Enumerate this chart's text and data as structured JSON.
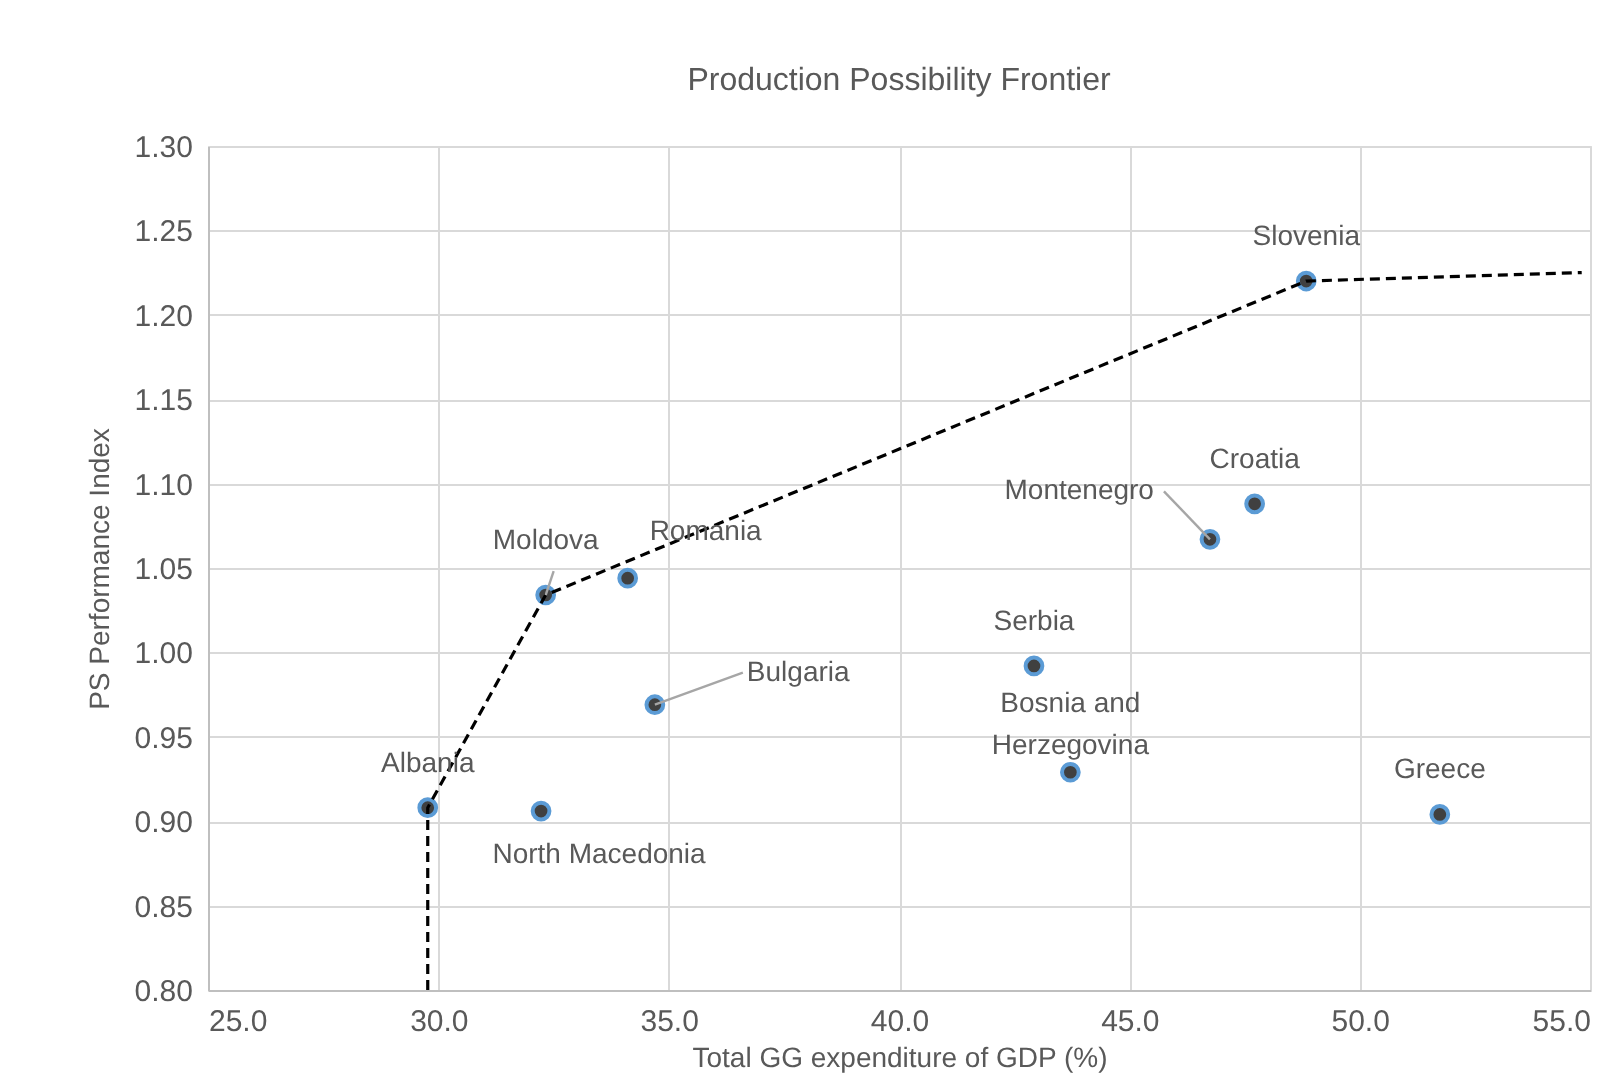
{
  "chart_data": {
    "type": "scatter",
    "title": "Production Possibility Frontier",
    "xlabel": "Total GG expenditure of GDP (%)",
    "ylabel": "PS Performance Index",
    "series": [
      {
        "type": "scatter",
        "color": "#404040",
        "marker": "circle",
        "x": [
          29.77,
          32.33,
          34.11,
          34.7,
          32.23,
          42.93,
          43.72,
          46.75,
          47.72,
          48.84,
          51.74
        ],
        "values": [
          0.908,
          1.034,
          1.044,
          0.969,
          0.906,
          0.992,
          0.929,
          1.067,
          1.088,
          1.22,
          0.904
        ]
      },
      {
        "type": "line",
        "color": "#000000",
        "line_style": "dashed",
        "marker": "none",
        "x": [
          29.77,
          29.77,
          32.33,
          48.84,
          54.82
        ],
        "values": [
          0.8,
          0.908,
          1.034,
          1.22,
          1.225
        ]
      }
    ],
    "annotations": [
      {
        "text": "Albania",
        "x": 29.77,
        "y": 0.908
      },
      {
        "text": "Moldova",
        "x": 32.33,
        "y": 1.034
      },
      {
        "text": "Romania",
        "x": 34.11,
        "y": 1.044
      },
      {
        "text": "Bulgaria",
        "x": 34.7,
        "y": 0.969
      },
      {
        "text": "North Macedonia",
        "x": 32.23,
        "y": 0.906
      },
      {
        "text": "Serbia",
        "x": 42.93,
        "y": 0.992
      },
      {
        "text": "Bosnia and\nHerzegovina",
        "x": 43.72,
        "y": 0.929
      },
      {
        "text": "Montenegro",
        "x": 46.75,
        "y": 1.067
      },
      {
        "text": "Croatia",
        "x": 47.72,
        "y": 1.088
      },
      {
        "text": "Slovenia",
        "x": 48.84,
        "y": 1.22
      },
      {
        "text": "Greece",
        "x": 51.74,
        "y": 0.904
      }
    ],
    "xlim": [
      25,
      55
    ],
    "xticks": [
      {
        "value": 25,
        "label": "25.0"
      },
      {
        "value": 30,
        "label": "30.0"
      },
      {
        "value": 35,
        "label": "35.0"
      },
      {
        "value": 40,
        "label": "40.0"
      },
      {
        "value": 45,
        "label": "45.0"
      },
      {
        "value": 50,
        "label": "50.0"
      },
      {
        "value": 55,
        "label": "55.0"
      }
    ],
    "ylim": [
      0.8,
      1.3
    ],
    "yticks": [
      {
        "value": 0.8,
        "label": "0.80"
      },
      {
        "value": 0.85,
        "label": "0.85"
      },
      {
        "value": 0.9,
        "label": "0.90"
      },
      {
        "value": 0.95,
        "label": "0.95"
      },
      {
        "value": 1.0,
        "label": "1.00"
      },
      {
        "value": 1.05,
        "label": "1.05"
      },
      {
        "value": 1.1,
        "label": "1.10"
      },
      {
        "value": 1.15,
        "label": "1.15"
      },
      {
        "value": 1.2,
        "label": "1.20"
      },
      {
        "value": 1.25,
        "label": "1.25"
      },
      {
        "value": 1.3,
        "label": "1.30"
      }
    ],
    "grid": true
  }
}
